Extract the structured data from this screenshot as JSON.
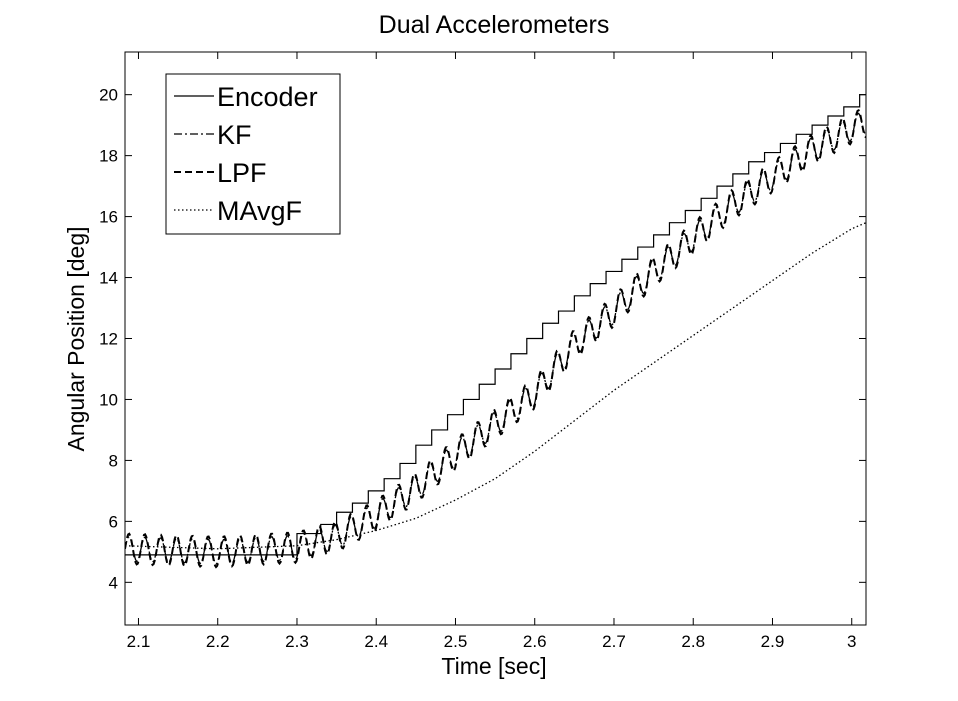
{
  "chart_data": {
    "type": "line",
    "title": "Dual Accelerometers",
    "xlabel": "Time [sec]",
    "ylabel": "Angular Position [deg]",
    "xlim": [
      2.083,
      3.018
    ],
    "ylim": [
      2.6,
      21.4
    ],
    "xticks": [
      2.1,
      2.2,
      2.3,
      2.4,
      2.5,
      2.6,
      2.7,
      2.8,
      2.9,
      3
    ],
    "xtick_labels": [
      "2.1",
      "2.2",
      "2.3",
      "2.4",
      "2.5",
      "2.6",
      "2.7",
      "2.8",
      "2.9",
      "3"
    ],
    "yticks": [
      4,
      6,
      8,
      10,
      12,
      14,
      16,
      18,
      20
    ],
    "ytick_labels": [
      "4",
      "6",
      "8",
      "10",
      "12",
      "14",
      "16",
      "18",
      "20"
    ],
    "grid": false,
    "legend_position": "top-left",
    "colors": {
      "line": "#000000",
      "background": "#ffffff"
    },
    "series": [
      {
        "name": "Encoder",
        "style": "solid",
        "step": true,
        "x": [
          2.083,
          2.3,
          2.33,
          2.35,
          2.37,
          2.39,
          2.41,
          2.43,
          2.45,
          2.47,
          2.49,
          2.51,
          2.53,
          2.55,
          2.57,
          2.59,
          2.61,
          2.63,
          2.65,
          2.67,
          2.69,
          2.71,
          2.73,
          2.75,
          2.77,
          2.79,
          2.81,
          2.83,
          2.85,
          2.87,
          2.89,
          2.91,
          2.93,
          2.95,
          2.97,
          2.99,
          3.01,
          3.018
        ],
        "y": [
          4.9,
          5.6,
          5.9,
          6.3,
          6.6,
          7.0,
          7.4,
          7.9,
          8.5,
          9.0,
          9.5,
          10.0,
          10.5,
          11.0,
          11.5,
          12.0,
          12.5,
          12.9,
          13.4,
          13.8,
          14.2,
          14.6,
          15.0,
          15.4,
          15.8,
          16.2,
          16.6,
          17.0,
          17.4,
          17.8,
          18.1,
          18.4,
          18.7,
          19.0,
          19.3,
          19.6,
          20.0,
          20.0
        ]
      },
      {
        "name": "KF",
        "style": "dashdot",
        "oscillating": true,
        "x": [
          2.083,
          2.2,
          2.3,
          2.35,
          2.4,
          2.45,
          2.5,
          2.55,
          2.6,
          2.65,
          2.7,
          2.75,
          2.8,
          2.85,
          2.9,
          2.95,
          3.0,
          3.018
        ],
        "y": [
          5.1,
          5.0,
          5.15,
          5.5,
          6.2,
          7.1,
          8.2,
          9.2,
          10.2,
          11.8,
          12.9,
          14.2,
          15.3,
          16.4,
          17.3,
          18.2,
          18.9,
          19.1
        ],
        "amplitude": 0.4,
        "period": 0.02
      },
      {
        "name": "LPF",
        "style": "dashed",
        "oscillating": true,
        "x": [
          2.083,
          2.2,
          2.3,
          2.35,
          2.4,
          2.45,
          2.5,
          2.55,
          2.6,
          2.65,
          2.7,
          2.75,
          2.8,
          2.85,
          2.9,
          2.95,
          3.0,
          3.018
        ],
        "y": [
          5.1,
          5.0,
          5.15,
          5.5,
          6.2,
          7.1,
          8.2,
          9.2,
          10.2,
          11.8,
          12.9,
          14.2,
          15.3,
          16.4,
          17.3,
          18.2,
          18.9,
          19.1
        ],
        "amplitude": 0.5,
        "period": 0.02
      },
      {
        "name": "MAvgF",
        "style": "dotted",
        "x": [
          2.083,
          2.2,
          2.3,
          2.35,
          2.4,
          2.45,
          2.5,
          2.55,
          2.6,
          2.65,
          2.7,
          2.75,
          2.8,
          2.85,
          2.9,
          2.95,
          3.0,
          3.018
        ],
        "y": [
          5.2,
          5.1,
          5.2,
          5.4,
          5.7,
          6.1,
          6.7,
          7.4,
          8.3,
          9.3,
          10.3,
          11.2,
          12.1,
          13.0,
          13.9,
          14.8,
          15.6,
          15.8
        ]
      }
    ]
  }
}
